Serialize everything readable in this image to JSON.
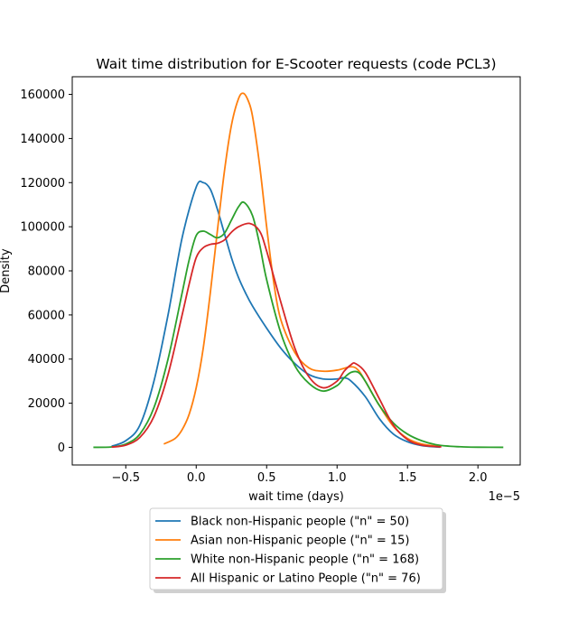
{
  "chart_data": {
    "type": "line",
    "title": "Wait time distribution  for E-Scooter requests (code PCL3)",
    "xlabel": "wait time (days)",
    "ylabel": "Density",
    "x_offset_text": "1e−5",
    "x_tick_labels": [
      "−0.5",
      "0.0",
      "0.5",
      "1.0",
      "1.5",
      "2.0"
    ],
    "x_tick_values": [
      -0.5,
      0.0,
      0.5,
      1.0,
      1.5,
      2.0
    ],
    "y_tick_labels": [
      "0",
      "20000",
      "40000",
      "60000",
      "80000",
      "100000",
      "120000",
      "140000",
      "160000"
    ],
    "y_tick_values": [
      0,
      20000,
      40000,
      60000,
      80000,
      100000,
      120000,
      140000,
      160000
    ],
    "xlim": [
      -0.88,
      2.3
    ],
    "ylim": [
      -8000,
      168000
    ],
    "grid": false,
    "legend_position": "below plot",
    "series": [
      {
        "name": "Black non-Hispanic people (\"n\" = 50)",
        "color": "#1f77b4",
        "points": [
          [
            -0.6,
            500
          ],
          [
            -0.5,
            3000
          ],
          [
            -0.4,
            10000
          ],
          [
            -0.3,
            30000
          ],
          [
            -0.2,
            60000
          ],
          [
            -0.1,
            95000
          ],
          [
            0.0,
            118000
          ],
          [
            0.05,
            120000
          ],
          [
            0.1,
            117000
          ],
          [
            0.15,
            108000
          ],
          [
            0.2,
            97000
          ],
          [
            0.25,
            86000
          ],
          [
            0.3,
            77000
          ],
          [
            0.35,
            70000
          ],
          [
            0.4,
            64000
          ],
          [
            0.5,
            54000
          ],
          [
            0.6,
            45000
          ],
          [
            0.7,
            38000
          ],
          [
            0.8,
            33000
          ],
          [
            0.9,
            31000
          ],
          [
            1.0,
            31000
          ],
          [
            1.05,
            31500
          ],
          [
            1.1,
            30000
          ],
          [
            1.2,
            23000
          ],
          [
            1.3,
            13000
          ],
          [
            1.4,
            6000
          ],
          [
            1.5,
            2500
          ],
          [
            1.6,
            800
          ],
          [
            1.7,
            200
          ],
          [
            1.73,
            100
          ]
        ]
      },
      {
        "name": "Asian non-Hispanic people (\"n\" = 15)",
        "color": "#ff7f0e",
        "points": [
          [
            -0.23,
            1500
          ],
          [
            -0.15,
            4000
          ],
          [
            -0.1,
            8000
          ],
          [
            -0.05,
            15000
          ],
          [
            0.0,
            27000
          ],
          [
            0.05,
            45000
          ],
          [
            0.1,
            70000
          ],
          [
            0.15,
            98000
          ],
          [
            0.2,
            125000
          ],
          [
            0.25,
            146000
          ],
          [
            0.3,
            158000
          ],
          [
            0.335,
            160500
          ],
          [
            0.37,
            157000
          ],
          [
            0.4,
            150000
          ],
          [
            0.45,
            128000
          ],
          [
            0.5,
            100000
          ],
          [
            0.55,
            75000
          ],
          [
            0.6,
            58000
          ],
          [
            0.7,
            43000
          ],
          [
            0.8,
            36000
          ],
          [
            0.9,
            34500
          ],
          [
            1.0,
            35000
          ],
          [
            1.1,
            36500
          ],
          [
            1.15,
            35000
          ],
          [
            1.2,
            30000
          ],
          [
            1.3,
            19000
          ],
          [
            1.4,
            9500
          ],
          [
            1.5,
            4000
          ],
          [
            1.6,
            1500
          ],
          [
            1.72,
            400
          ]
        ]
      },
      {
        "name": "White non-Hispanic people (\"n\" = 168)",
        "color": "#2ca02c",
        "points": [
          [
            -0.73,
            0
          ],
          [
            -0.6,
            200
          ],
          [
            -0.5,
            1500
          ],
          [
            -0.4,
            6000
          ],
          [
            -0.3,
            18000
          ],
          [
            -0.2,
            40000
          ],
          [
            -0.1,
            70000
          ],
          [
            -0.05,
            85000
          ],
          [
            0.0,
            96000
          ],
          [
            0.05,
            98000
          ],
          [
            0.1,
            96500
          ],
          [
            0.15,
            95000
          ],
          [
            0.2,
            97000
          ],
          [
            0.25,
            103000
          ],
          [
            0.3,
            109000
          ],
          [
            0.34,
            111000
          ],
          [
            0.4,
            105000
          ],
          [
            0.45,
            92000
          ],
          [
            0.5,
            76000
          ],
          [
            0.6,
            52000
          ],
          [
            0.7,
            37000
          ],
          [
            0.8,
            29000
          ],
          [
            0.9,
            25500
          ],
          [
            1.0,
            28000
          ],
          [
            1.05,
            31500
          ],
          [
            1.1,
            34000
          ],
          [
            1.15,
            34000
          ],
          [
            1.2,
            30000
          ],
          [
            1.3,
            19000
          ],
          [
            1.4,
            11000
          ],
          [
            1.5,
            6000
          ],
          [
            1.6,
            3000
          ],
          [
            1.7,
            1200
          ],
          [
            1.8,
            500
          ],
          [
            1.9,
            200
          ],
          [
            2.0,
            50
          ],
          [
            2.18,
            0
          ]
        ]
      },
      {
        "name": "All Hispanic or Latino People (\"n\" = 76)",
        "color": "#d62728",
        "points": [
          [
            -0.6,
            100
          ],
          [
            -0.5,
            1000
          ],
          [
            -0.4,
            4500
          ],
          [
            -0.3,
            14000
          ],
          [
            -0.2,
            33000
          ],
          [
            -0.1,
            60000
          ],
          [
            -0.05,
            74000
          ],
          [
            0.0,
            86000
          ],
          [
            0.05,
            90500
          ],
          [
            0.1,
            92000
          ],
          [
            0.15,
            92500
          ],
          [
            0.2,
            94000
          ],
          [
            0.25,
            97500
          ],
          [
            0.3,
            100000
          ],
          [
            0.38,
            101500
          ],
          [
            0.45,
            98000
          ],
          [
            0.5,
            89000
          ],
          [
            0.6,
            66000
          ],
          [
            0.7,
            45000
          ],
          [
            0.8,
            32000
          ],
          [
            0.9,
            27000
          ],
          [
            1.0,
            30000
          ],
          [
            1.05,
            34500
          ],
          [
            1.1,
            37500
          ],
          [
            1.13,
            38000
          ],
          [
            1.2,
            34000
          ],
          [
            1.3,
            22000
          ],
          [
            1.4,
            10000
          ],
          [
            1.5,
            3500
          ],
          [
            1.6,
            1000
          ],
          [
            1.74,
            200
          ]
        ]
      }
    ]
  }
}
